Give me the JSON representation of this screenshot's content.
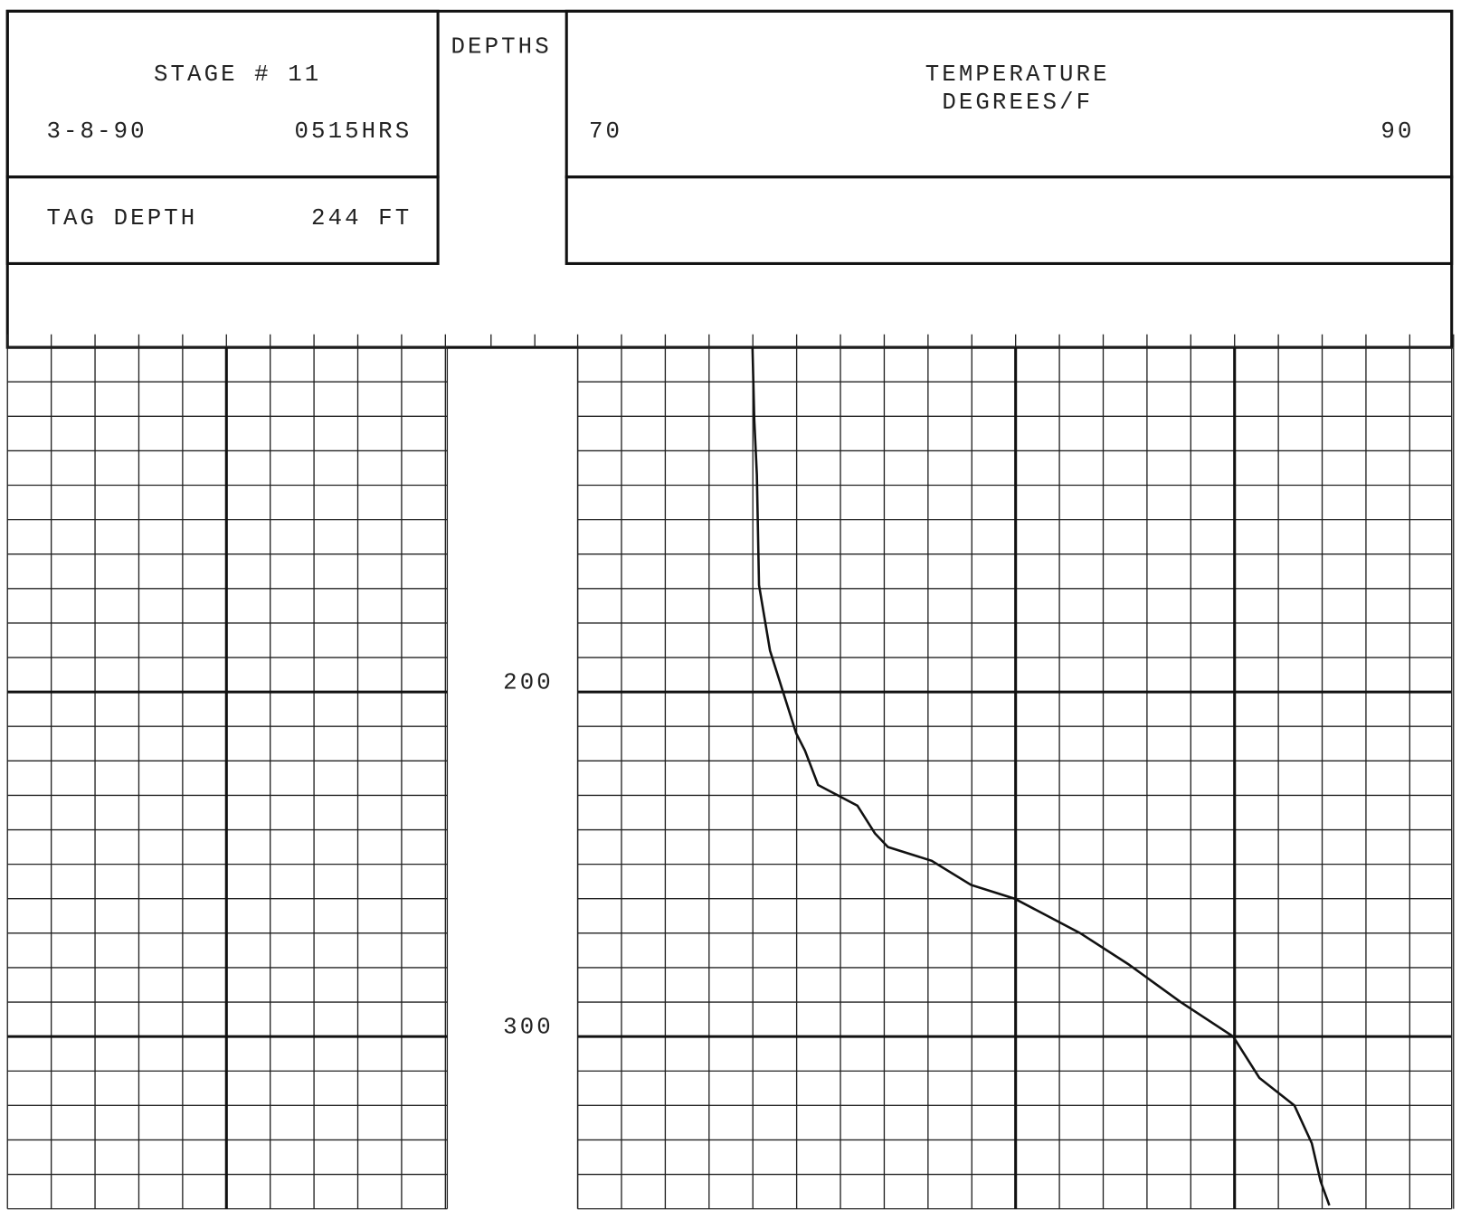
{
  "header": {
    "stage": "STAGE # 11",
    "date": "3-8-90",
    "time": "0515HRS",
    "tag_label": "TAG DEPTH",
    "tag_value": "244 FT",
    "depths_label": "DEPTHS"
  },
  "chart_data": {
    "type": "line",
    "xlabel": "TEMPERATURE",
    "xunit": "DEGREES/F",
    "xlim": [
      70,
      90
    ],
    "xticks": [
      70,
      90
    ],
    "ylim": [
      100,
      350
    ],
    "yticks": [
      200,
      300
    ],
    "y_inverted": true,
    "grid": true,
    "color": "#111",
    "depths": [
      100,
      120.8,
      137,
      169,
      188,
      200,
      212,
      217,
      227,
      233,
      241,
      245,
      249,
      256,
      260,
      270,
      279,
      290,
      300,
      312,
      320,
      331,
      342,
      349
    ],
    "values": [
      74,
      74.04,
      74.1,
      74.15,
      74.4,
      74.7,
      75.0,
      75.2,
      75.5,
      76.4,
      76.8,
      77.1,
      78.1,
      79.0,
      80,
      81.5,
      82.6,
      83.8,
      85.0,
      85.6,
      86.4,
      86.8,
      87.0,
      87.2
    ]
  }
}
